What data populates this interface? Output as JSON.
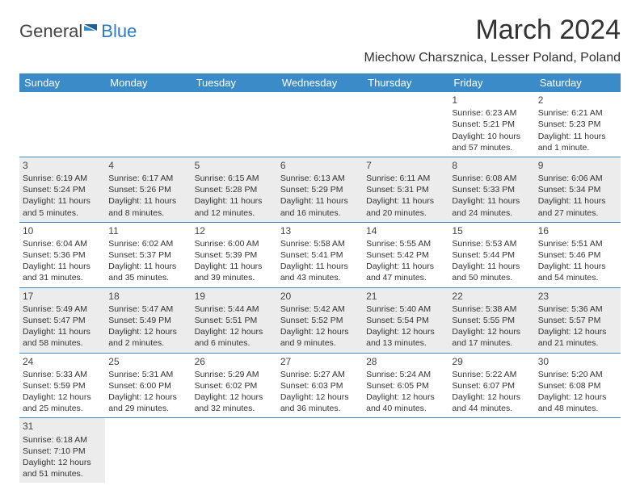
{
  "brand": {
    "part1": "General",
    "part2": "Blue"
  },
  "title": "March 2024",
  "location": "Miechow Charsznica, Lesser Poland, Poland",
  "colors": {
    "header_bg": "#3b8bc8",
    "header_text": "#ffffff",
    "shade_bg": "#ececec",
    "text": "#333333",
    "rule": "#3b8bc8"
  },
  "daysOfWeek": [
    "Sunday",
    "Monday",
    "Tuesday",
    "Wednesday",
    "Thursday",
    "Friday",
    "Saturday"
  ],
  "weeks": [
    [
      null,
      null,
      null,
      null,
      null,
      {
        "n": "1",
        "sr": "Sunrise: 6:23 AM",
        "ss": "Sunset: 5:21 PM",
        "d1": "Daylight: 10 hours",
        "d2": "and 57 minutes."
      },
      {
        "n": "2",
        "sr": "Sunrise: 6:21 AM",
        "ss": "Sunset: 5:23 PM",
        "d1": "Daylight: 11 hours",
        "d2": "and 1 minute."
      }
    ],
    [
      {
        "n": "3",
        "sr": "Sunrise: 6:19 AM",
        "ss": "Sunset: 5:24 PM",
        "d1": "Daylight: 11 hours",
        "d2": "and 5 minutes."
      },
      {
        "n": "4",
        "sr": "Sunrise: 6:17 AM",
        "ss": "Sunset: 5:26 PM",
        "d1": "Daylight: 11 hours",
        "d2": "and 8 minutes."
      },
      {
        "n": "5",
        "sr": "Sunrise: 6:15 AM",
        "ss": "Sunset: 5:28 PM",
        "d1": "Daylight: 11 hours",
        "d2": "and 12 minutes."
      },
      {
        "n": "6",
        "sr": "Sunrise: 6:13 AM",
        "ss": "Sunset: 5:29 PM",
        "d1": "Daylight: 11 hours",
        "d2": "and 16 minutes."
      },
      {
        "n": "7",
        "sr": "Sunrise: 6:11 AM",
        "ss": "Sunset: 5:31 PM",
        "d1": "Daylight: 11 hours",
        "d2": "and 20 minutes."
      },
      {
        "n": "8",
        "sr": "Sunrise: 6:08 AM",
        "ss": "Sunset: 5:33 PM",
        "d1": "Daylight: 11 hours",
        "d2": "and 24 minutes."
      },
      {
        "n": "9",
        "sr": "Sunrise: 6:06 AM",
        "ss": "Sunset: 5:34 PM",
        "d1": "Daylight: 11 hours",
        "d2": "and 27 minutes."
      }
    ],
    [
      {
        "n": "10",
        "sr": "Sunrise: 6:04 AM",
        "ss": "Sunset: 5:36 PM",
        "d1": "Daylight: 11 hours",
        "d2": "and 31 minutes."
      },
      {
        "n": "11",
        "sr": "Sunrise: 6:02 AM",
        "ss": "Sunset: 5:37 PM",
        "d1": "Daylight: 11 hours",
        "d2": "and 35 minutes."
      },
      {
        "n": "12",
        "sr": "Sunrise: 6:00 AM",
        "ss": "Sunset: 5:39 PM",
        "d1": "Daylight: 11 hours",
        "d2": "and 39 minutes."
      },
      {
        "n": "13",
        "sr": "Sunrise: 5:58 AM",
        "ss": "Sunset: 5:41 PM",
        "d1": "Daylight: 11 hours",
        "d2": "and 43 minutes."
      },
      {
        "n": "14",
        "sr": "Sunrise: 5:55 AM",
        "ss": "Sunset: 5:42 PM",
        "d1": "Daylight: 11 hours",
        "d2": "and 47 minutes."
      },
      {
        "n": "15",
        "sr": "Sunrise: 5:53 AM",
        "ss": "Sunset: 5:44 PM",
        "d1": "Daylight: 11 hours",
        "d2": "and 50 minutes."
      },
      {
        "n": "16",
        "sr": "Sunrise: 5:51 AM",
        "ss": "Sunset: 5:46 PM",
        "d1": "Daylight: 11 hours",
        "d2": "and 54 minutes."
      }
    ],
    [
      {
        "n": "17",
        "sr": "Sunrise: 5:49 AM",
        "ss": "Sunset: 5:47 PM",
        "d1": "Daylight: 11 hours",
        "d2": "and 58 minutes."
      },
      {
        "n": "18",
        "sr": "Sunrise: 5:47 AM",
        "ss": "Sunset: 5:49 PM",
        "d1": "Daylight: 12 hours",
        "d2": "and 2 minutes."
      },
      {
        "n": "19",
        "sr": "Sunrise: 5:44 AM",
        "ss": "Sunset: 5:51 PM",
        "d1": "Daylight: 12 hours",
        "d2": "and 6 minutes."
      },
      {
        "n": "20",
        "sr": "Sunrise: 5:42 AM",
        "ss": "Sunset: 5:52 PM",
        "d1": "Daylight: 12 hours",
        "d2": "and 9 minutes."
      },
      {
        "n": "21",
        "sr": "Sunrise: 5:40 AM",
        "ss": "Sunset: 5:54 PM",
        "d1": "Daylight: 12 hours",
        "d2": "and 13 minutes."
      },
      {
        "n": "22",
        "sr": "Sunrise: 5:38 AM",
        "ss": "Sunset: 5:55 PM",
        "d1": "Daylight: 12 hours",
        "d2": "and 17 minutes."
      },
      {
        "n": "23",
        "sr": "Sunrise: 5:36 AM",
        "ss": "Sunset: 5:57 PM",
        "d1": "Daylight: 12 hours",
        "d2": "and 21 minutes."
      }
    ],
    [
      {
        "n": "24",
        "sr": "Sunrise: 5:33 AM",
        "ss": "Sunset: 5:59 PM",
        "d1": "Daylight: 12 hours",
        "d2": "and 25 minutes."
      },
      {
        "n": "25",
        "sr": "Sunrise: 5:31 AM",
        "ss": "Sunset: 6:00 PM",
        "d1": "Daylight: 12 hours",
        "d2": "and 29 minutes."
      },
      {
        "n": "26",
        "sr": "Sunrise: 5:29 AM",
        "ss": "Sunset: 6:02 PM",
        "d1": "Daylight: 12 hours",
        "d2": "and 32 minutes."
      },
      {
        "n": "27",
        "sr": "Sunrise: 5:27 AM",
        "ss": "Sunset: 6:03 PM",
        "d1": "Daylight: 12 hours",
        "d2": "and 36 minutes."
      },
      {
        "n": "28",
        "sr": "Sunrise: 5:24 AM",
        "ss": "Sunset: 6:05 PM",
        "d1": "Daylight: 12 hours",
        "d2": "and 40 minutes."
      },
      {
        "n": "29",
        "sr": "Sunrise: 5:22 AM",
        "ss": "Sunset: 6:07 PM",
        "d1": "Daylight: 12 hours",
        "d2": "and 44 minutes."
      },
      {
        "n": "30",
        "sr": "Sunrise: 5:20 AM",
        "ss": "Sunset: 6:08 PM",
        "d1": "Daylight: 12 hours",
        "d2": "and 48 minutes."
      }
    ],
    [
      {
        "n": "31",
        "sr": "Sunrise: 6:18 AM",
        "ss": "Sunset: 7:10 PM",
        "d1": "Daylight: 12 hours",
        "d2": "and 51 minutes."
      },
      null,
      null,
      null,
      null,
      null,
      null
    ]
  ],
  "shadeRows": [
    false,
    true,
    false,
    true,
    false,
    true
  ]
}
